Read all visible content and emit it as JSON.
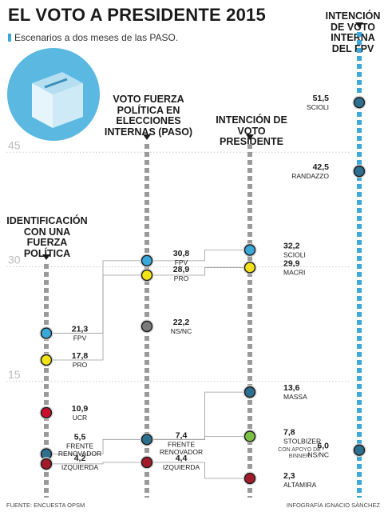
{
  "header": {
    "title_main": "EL VOTO A PRESIDENTE",
    "title_year": "2015",
    "subtitle": "Escenarios a dos meses de las PASO."
  },
  "footer": {
    "source": "FUENTE: ENCUESTA OPSM",
    "credit": "INFOGRAFÍA IGNACIO SÁNCHEZ"
  },
  "colors": {
    "accent_blue": "#3aa8d8",
    "fpv_blue": "#3aa8d8",
    "pro_yellow": "#f3e21a",
    "ucr_red": "#c8102e",
    "renovador_blue": "#2d6f8f",
    "izquierda_red": "#a31b2a",
    "nsnc_gray": "#7a7a7a",
    "stolbizer_green": "#7cc142",
    "axis_gray": "#9a9a9a"
  },
  "icons": {
    "ballot_box": "ballot-box-icon"
  },
  "chart_data": {
    "type": "dot-columns",
    "y_ticks": [
      45,
      30,
      15
    ],
    "ylim": [
      0,
      55
    ],
    "columns": [
      {
        "id": "identificacion",
        "title": "IDENTIFICACIÓN\nCON UNA\nFUERZA POLÍTICA",
        "points": [
          {
            "value": "21,3",
            "y": 21.3,
            "name": "FPV",
            "sub": "",
            "color": "#3aa8d8"
          },
          {
            "value": "17,8",
            "y": 17.8,
            "name": "PRO",
            "sub": "",
            "color": "#f3e21a"
          },
          {
            "value": "10,9",
            "y": 10.9,
            "name": "UCR",
            "sub": "",
            "color": "#c8102e"
          },
          {
            "value": "5,5",
            "y": 5.5,
            "name": "FRENTE\nRENOVADOR",
            "sub": "",
            "color": "#2d6f8f"
          },
          {
            "value": "4,2",
            "y": 4.2,
            "name": "IZQUIERDA",
            "sub": "",
            "color": "#a31b2a"
          }
        ]
      },
      {
        "id": "paso",
        "title": "VOTO FUERZA\nPOLÍTICA EN\nELECCIONES\nINTERNAS (PASO)",
        "points": [
          {
            "value": "30,8",
            "y": 30.8,
            "name": "FPV",
            "sub": "",
            "color": "#3aa8d8"
          },
          {
            "value": "28,9",
            "y": 28.9,
            "name": "PRO",
            "sub": "",
            "color": "#f3e21a"
          },
          {
            "value": "22,2",
            "y": 22.2,
            "name": "NS/NC",
            "sub": "",
            "color": "#7a7a7a"
          },
          {
            "value": "7,4",
            "y": 7.4,
            "name": "FRENTE\nRENOVADOR",
            "sub": "",
            "color": "#2d6f8f"
          },
          {
            "value": "4,4",
            "y": 4.4,
            "name": "IZQUIERDA",
            "sub": "",
            "color": "#a31b2a"
          }
        ]
      },
      {
        "id": "presidente",
        "title": "INTENCIÓN DE\nVOTO PRESIDENTE",
        "points": [
          {
            "value": "32,2",
            "y": 32.2,
            "name": "SCIOLI",
            "sub": "",
            "color": "#3aa8d8"
          },
          {
            "value": "29,9",
            "y": 29.9,
            "name": "MACRI",
            "sub": "",
            "color": "#f3e21a"
          },
          {
            "value": "13,6",
            "y": 13.6,
            "name": "MASSA",
            "sub": "",
            "color": "#2d6f8f"
          },
          {
            "value": "7,8",
            "y": 7.8,
            "name": "STOLBIZER",
            "sub": "CON APOYO DE\nBINNER",
            "color": "#7cc142"
          },
          {
            "value": "2,3",
            "y": 2.3,
            "name": "ALTAMIRA",
            "sub": "",
            "color": "#a31b2a"
          }
        ]
      },
      {
        "id": "interna_fpv",
        "title": "INTENCIÓN\nDE VOTO\nINTERNA\nDEL FPV",
        "points": [
          {
            "value": "51,5",
            "y": 51.5,
            "name": "SCIOLI",
            "sub": "",
            "color": "#2d6f8f"
          },
          {
            "value": "42,5",
            "y": 42.5,
            "name": "RANDAZZO",
            "sub": "",
            "color": "#2d6f8f"
          },
          {
            "value": "6,0",
            "y": 6.0,
            "name": "NS/NC",
            "sub": "",
            "color": "#2d6f8f"
          }
        ]
      }
    ]
  }
}
